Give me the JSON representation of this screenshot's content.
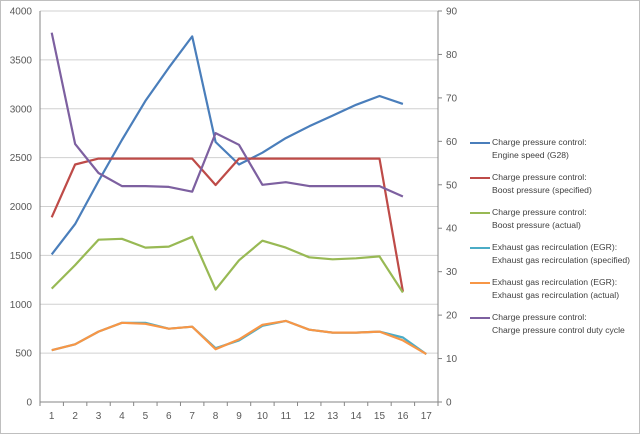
{
  "chart_data": {
    "type": "line",
    "title": "",
    "xlabel": "",
    "ylabel": "",
    "y2label": "",
    "categories": [
      "1",
      "2",
      "3",
      "4",
      "5",
      "6",
      "7",
      "8",
      "9",
      "10",
      "11",
      "12",
      "13",
      "14",
      "15",
      "16",
      "17"
    ],
    "ylim": [
      0,
      4000
    ],
    "y2lim": [
      0,
      90
    ],
    "yticks": [
      "0",
      "500",
      "1000",
      "1500",
      "2000",
      "2500",
      "3000",
      "3500",
      "4000"
    ],
    "y2ticks": [
      "0",
      "10",
      "20",
      "30",
      "40",
      "50",
      "60",
      "70",
      "80",
      "90"
    ],
    "grid": true,
    "legend_position": "right",
    "series": [
      {
        "name": "Charge pressure control:\nEngine speed (G28)",
        "color": "#4a7ebb",
        "axis": "left",
        "values": [
          1510,
          1820,
          2260,
          2680,
          3080,
          3420,
          3740,
          2660,
          2430,
          2550,
          2700,
          2820,
          2930,
          3040,
          3130,
          3050,
          null
        ]
      },
      {
        "name": "Charge pressure control:\nBoost pressure (specified)",
        "color": "#be4b48",
        "axis": "left",
        "values": [
          1890,
          2430,
          2490,
          2490,
          2490,
          2490,
          2490,
          2220,
          2490,
          2490,
          2490,
          2490,
          2490,
          2490,
          2490,
          1130,
          null
        ]
      },
      {
        "name": "Charge pressure control:\nBoost pressure (actual)",
        "color": "#98b954",
        "axis": "left",
        "values": [
          1160,
          1400,
          1660,
          1670,
          1580,
          1590,
          1690,
          1150,
          1450,
          1650,
          1580,
          1480,
          1460,
          1470,
          1490,
          1120,
          null
        ]
      },
      {
        "name": "Exhaust gas recirculation (EGR):\nExhaust gas recirculation (specified)",
        "color": "#4bacc6",
        "axis": "left",
        "values": [
          530,
          590,
          720,
          810,
          810,
          750,
          770,
          550,
          630,
          780,
          830,
          740,
          710,
          710,
          720,
          660,
          490
        ]
      },
      {
        "name": "Exhaust gas recirculation (EGR):\nExhaust gas recirculation (actual)",
        "color": "#f79646",
        "axis": "left",
        "values": [
          530,
          590,
          720,
          810,
          800,
          750,
          770,
          540,
          640,
          790,
          830,
          740,
          710,
          710,
          720,
          630,
          490
        ]
      },
      {
        "name": "Charge pressure control:\nCharge pressure control duty cycle",
        "color": "#7d60a0",
        "axis": "right",
        "values": [
          85,
          59.4,
          52.7,
          49.7,
          49.7,
          49.5,
          48.4,
          61.9,
          59.2,
          50,
          50.6,
          49.7,
          49.7,
          49.7,
          49.7,
          47.3,
          null
        ]
      }
    ]
  }
}
